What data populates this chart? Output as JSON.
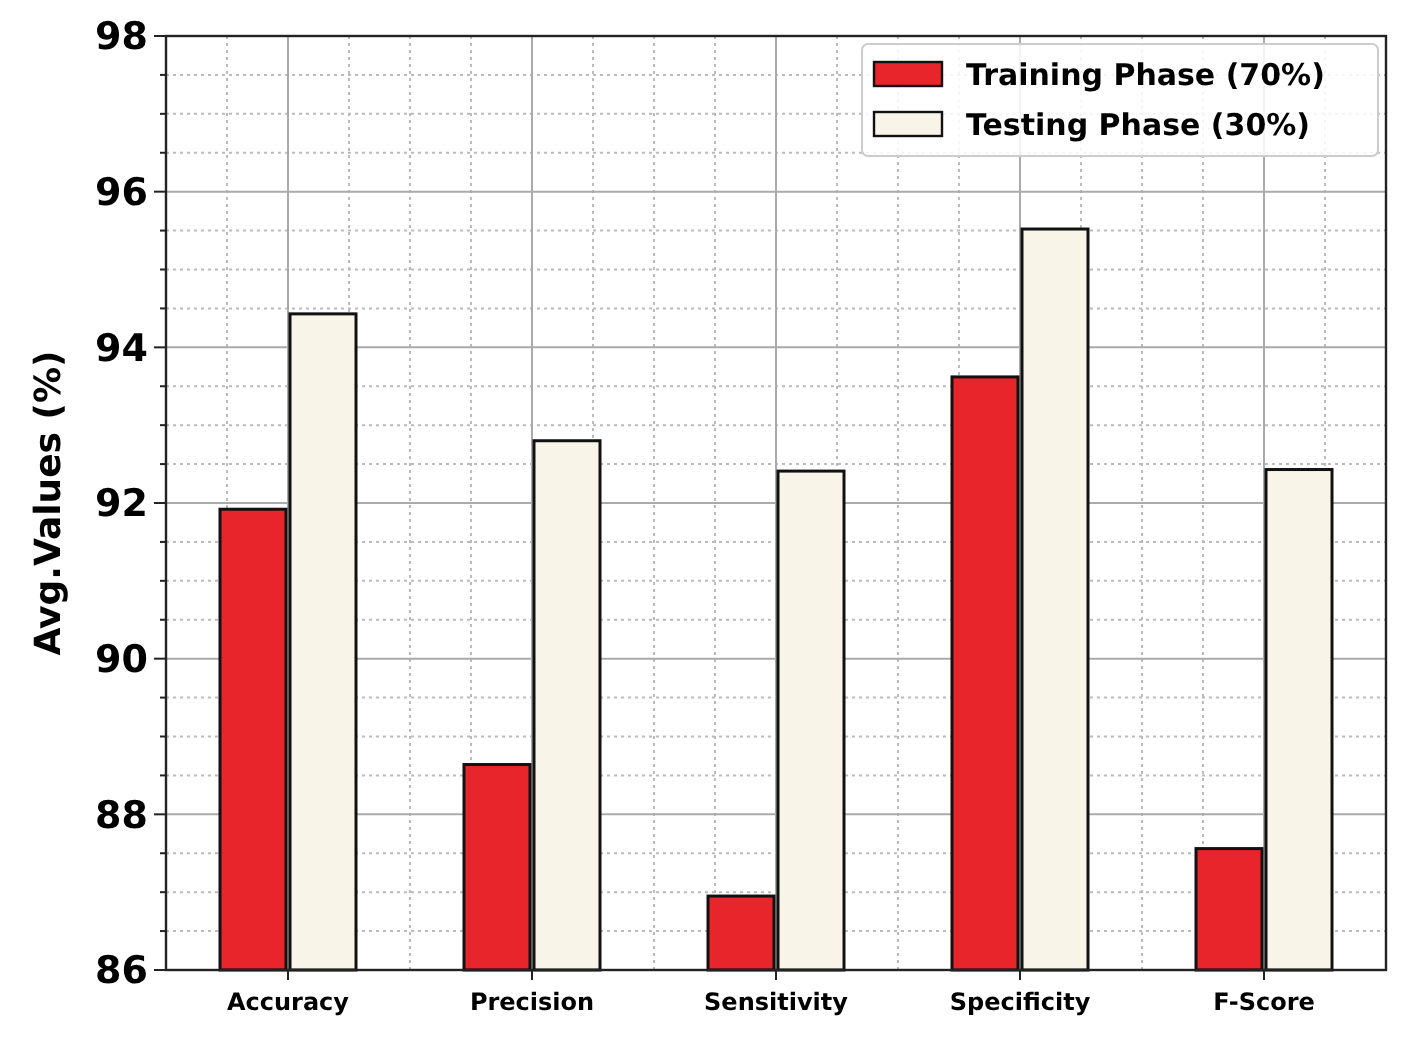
{
  "chart_data": {
    "type": "bar",
    "ylabel": "Avg.Values (%)",
    "categories": [
      "Accuracy",
      "Precision",
      "Sensitivity",
      "Specificity",
      "F-Score"
    ],
    "series": [
      {
        "name": "Training Phase (70%)",
        "color": "#e8252b",
        "values": [
          91.92,
          88.64,
          86.95,
          93.62,
          87.56
        ]
      },
      {
        "name": "Testing Phase (30%)",
        "color": "#f8f5e8",
        "values": [
          94.43,
          92.8,
          92.41,
          95.52,
          92.43
        ]
      }
    ],
    "ylim": [
      86,
      98
    ],
    "yticks": [
      86,
      88,
      90,
      92,
      94,
      96,
      98
    ],
    "grid": true,
    "legend": "top right"
  }
}
